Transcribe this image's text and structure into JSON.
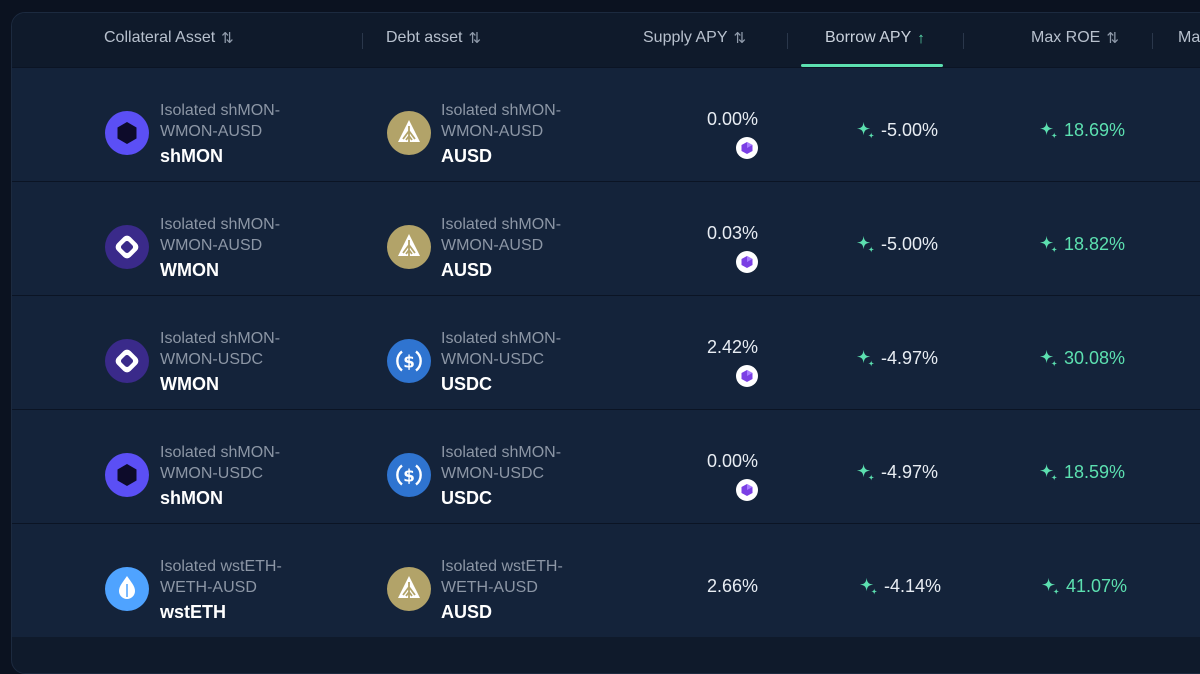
{
  "header": {
    "columns": [
      {
        "label": "Collateral Asset",
        "sort": "⇅"
      },
      {
        "label": "Debt asset",
        "sort": "⇅"
      },
      {
        "label": "Supply APY",
        "sort": "⇅"
      },
      {
        "label": "Borrow APY",
        "sort": "↑"
      },
      {
        "label": "Max ROE",
        "sort": "⇅"
      },
      {
        "label": "Ma",
        "sort": ""
      }
    ]
  },
  "colors": {
    "accent": "#5ce0b0",
    "shmon": "#5b4ff5",
    "wmon": "#3a2a8a",
    "ausd": "#b2a369",
    "usdc": "#2f74d0",
    "wsteth": "#4fa3ff"
  },
  "rows": [
    {
      "collateral": {
        "market": "Isolated shMON-",
        "market2": "WMON-AUSD",
        "symbol": "shMON",
        "icon": "shmon-icon"
      },
      "debt": {
        "market": "Isolated shMON-",
        "market2": "WMON-AUSD",
        "symbol": "AUSD",
        "icon": "ausd-icon"
      },
      "supply_apy": "0.00%",
      "reward": true,
      "borrow_apy": "-5.00%",
      "max_roe": "18.69%"
    },
    {
      "collateral": {
        "market": "Isolated shMON-",
        "market2": "WMON-AUSD",
        "symbol": "WMON",
        "icon": "wmon-icon"
      },
      "debt": {
        "market": "Isolated shMON-",
        "market2": "WMON-AUSD",
        "symbol": "AUSD",
        "icon": "ausd-icon"
      },
      "supply_apy": "0.03%",
      "reward": true,
      "borrow_apy": "-5.00%",
      "max_roe": "18.82%"
    },
    {
      "collateral": {
        "market": "Isolated shMON-",
        "market2": "WMON-USDC",
        "symbol": "WMON",
        "icon": "wmon-icon"
      },
      "debt": {
        "market": "Isolated shMON-",
        "market2": "WMON-USDC",
        "symbol": "USDC",
        "icon": "usdc-icon"
      },
      "supply_apy": "2.42%",
      "reward": true,
      "borrow_apy": "-4.97%",
      "max_roe": "30.08%"
    },
    {
      "collateral": {
        "market": "Isolated shMON-",
        "market2": "WMON-USDC",
        "symbol": "shMON",
        "icon": "shmon-icon"
      },
      "debt": {
        "market": "Isolated shMON-",
        "market2": "WMON-USDC",
        "symbol": "USDC",
        "icon": "usdc-icon"
      },
      "supply_apy": "0.00%",
      "reward": true,
      "borrow_apy": "-4.97%",
      "max_roe": "18.59%"
    },
    {
      "collateral": {
        "market": "Isolated wstETH-",
        "market2": "WETH-AUSD",
        "symbol": "wstETH",
        "icon": "wsteth-icon"
      },
      "debt": {
        "market": "Isolated wstETH-",
        "market2": "WETH-AUSD",
        "symbol": "AUSD",
        "icon": "ausd-icon"
      },
      "supply_apy": "2.66%",
      "reward": false,
      "borrow_apy": "-4.14%",
      "max_roe": "41.07%"
    }
  ]
}
